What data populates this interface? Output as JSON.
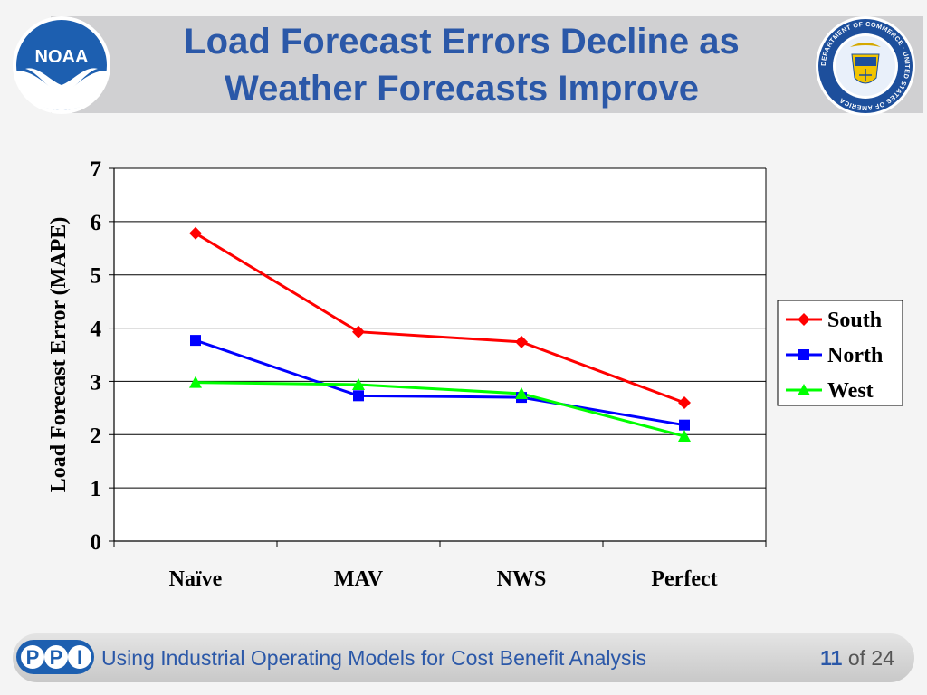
{
  "slide": {
    "title_line1": "Load Forecast Errors Decline as",
    "title_line2": "Weather Forecasts Improve",
    "noaa_logo_text": "NOAA",
    "seal_text": "DEPARTMENT OF COMMERCE · UNITED STATES OF AMERICA"
  },
  "footer": {
    "ppi_letters": [
      "P",
      "P",
      "I"
    ],
    "text": "Using Industrial Operating Models for Cost Benefit Analysis",
    "page_current": "11",
    "page_of": "of",
    "page_total": "24"
  },
  "colors": {
    "title": "#2b58a8",
    "south": "#ff0000",
    "north": "#0000ff",
    "west": "#00ff00"
  },
  "chart_data": {
    "type": "line",
    "ylabel": "Load Forecast Error (MAPE)",
    "xlabel": "",
    "categories": [
      "Naïve",
      "MAV",
      "NWS",
      "Perfect"
    ],
    "ylim": [
      0,
      7
    ],
    "yticks": [
      "0",
      "1",
      "2",
      "3",
      "4",
      "5",
      "6",
      "7"
    ],
    "grid": true,
    "legend_position": "right",
    "series": [
      {
        "name": "South",
        "marker": "diamond",
        "color": "#ff0000",
        "values": [
          5.78,
          3.93,
          3.74,
          2.6
        ]
      },
      {
        "name": "North",
        "marker": "square",
        "color": "#0000ff",
        "values": [
          3.77,
          2.73,
          2.7,
          2.18
        ]
      },
      {
        "name": "West",
        "marker": "triangle",
        "color": "#00ff00",
        "values": [
          2.98,
          2.94,
          2.77,
          1.97
        ]
      }
    ]
  }
}
